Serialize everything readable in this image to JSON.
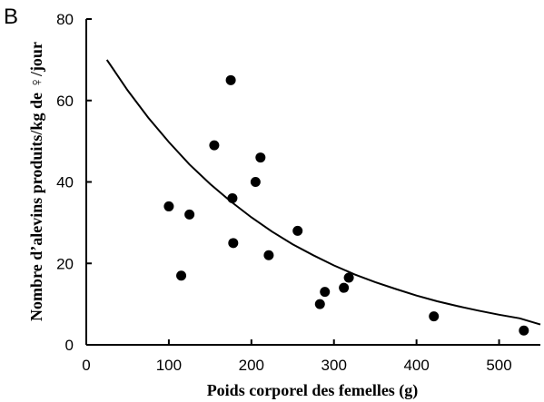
{
  "chart_data": {
    "type": "scatter",
    "panel_label": "B",
    "xlabel": "Poids corporel des femelles (g)",
    "ylabel": "Nombre d’alevins produits/kg de ♀/jour",
    "xlim": [
      0,
      550
    ],
    "ylim": [
      0,
      80
    ],
    "x_ticks": [
      0,
      100,
      200,
      300,
      400,
      500
    ],
    "y_ticks": [
      0,
      20,
      40,
      60,
      80
    ],
    "grid": false,
    "points": [
      {
        "x": 100,
        "y": 34
      },
      {
        "x": 115,
        "y": 17
      },
      {
        "x": 125,
        "y": 32
      },
      {
        "x": 155,
        "y": 49
      },
      {
        "x": 175,
        "y": 65
      },
      {
        "x": 177,
        "y": 36
      },
      {
        "x": 178,
        "y": 25
      },
      {
        "x": 205,
        "y": 40
      },
      {
        "x": 211,
        "y": 46
      },
      {
        "x": 221,
        "y": 22
      },
      {
        "x": 256,
        "y": 28
      },
      {
        "x": 283,
        "y": 10
      },
      {
        "x": 289,
        "y": 13
      },
      {
        "x": 312,
        "y": 14
      },
      {
        "x": 318,
        "y": 16.5
      },
      {
        "x": 421,
        "y": 7
      },
      {
        "x": 530,
        "y": 3.5
      }
    ],
    "fit_curve": {
      "x": [
        25,
        50,
        75,
        100,
        125,
        150,
        175,
        200,
        225,
        250,
        275,
        300,
        325,
        350,
        375,
        400,
        425,
        450,
        475,
        500,
        525,
        550
      ],
      "y": [
        70,
        62.5,
        55.8,
        49.8,
        44.3,
        39.5,
        35.2,
        31.3,
        27.8,
        24.7,
        22.0,
        19.5,
        17.3,
        15.4,
        13.7,
        12.1,
        10.7,
        9.5,
        8.4,
        7.4,
        6.5,
        5.0
      ]
    }
  }
}
